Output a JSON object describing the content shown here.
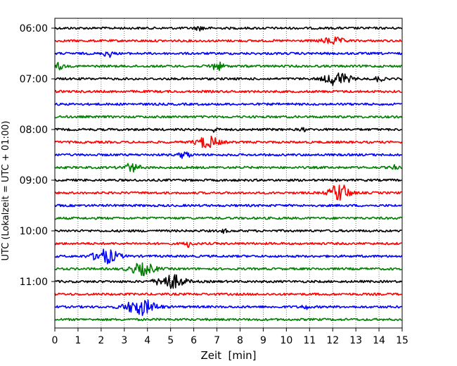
{
  "chart_data": {
    "type": "line",
    "title": "",
    "xlabel": "Zeit  [min]",
    "ylabel": "UTC (Lokalzeit = UTC + 01:00)",
    "xlim": [
      0,
      15
    ],
    "x_ticks": [
      "0",
      "1",
      "2",
      "3",
      "4",
      "5",
      "6",
      "7",
      "8",
      "9",
      "10",
      "11",
      "12",
      "13",
      "14",
      "15"
    ],
    "y_tick_labels": [
      "06:00",
      "07:00",
      "08:00",
      "09:00",
      "10:00",
      "11:00"
    ],
    "y_ticks_minutes": [
      0,
      60,
      120,
      180,
      240,
      300
    ],
    "trace_interval_minutes": 15,
    "vertical_gridlines": true,
    "gridline_style": "dotted",
    "traces": [
      {
        "start": "06:00",
        "color": "#000000",
        "events": [
          {
            "t": 6.3,
            "amp": 0.15,
            "w": 0.4
          }
        ]
      },
      {
        "start": "06:15",
        "color": "#ff0000",
        "events": [
          {
            "t": 12.0,
            "amp": 0.25,
            "w": 0.8
          }
        ]
      },
      {
        "start": "06:30",
        "color": "#0000ff",
        "events": [
          {
            "t": 2.3,
            "amp": 0.3,
            "w": 0.3
          }
        ]
      },
      {
        "start": "06:45",
        "color": "#008000",
        "events": [
          {
            "t": 0.2,
            "amp": 0.25,
            "w": 0.3
          },
          {
            "t": 7.0,
            "amp": 0.3,
            "w": 0.5
          }
        ]
      },
      {
        "start": "07:00",
        "color": "#000000",
        "events": [
          {
            "t": 12.2,
            "amp": 0.5,
            "w": 0.9
          },
          {
            "t": 14.0,
            "amp": 0.2,
            "w": 0.3
          }
        ]
      },
      {
        "start": "07:15",
        "color": "#ff0000",
        "events": []
      },
      {
        "start": "07:30",
        "color": "#0000ff",
        "events": []
      },
      {
        "start": "07:45",
        "color": "#008000",
        "events": []
      },
      {
        "start": "08:00",
        "color": "#000000",
        "events": [
          {
            "t": 6.9,
            "amp": 0.2,
            "w": 0.2
          },
          {
            "t": 10.7,
            "amp": 0.15,
            "w": 0.2
          }
        ]
      },
      {
        "start": "08:15",
        "color": "#ff0000",
        "events": [
          {
            "t": 6.6,
            "amp": 0.45,
            "w": 0.8
          }
        ]
      },
      {
        "start": "08:30",
        "color": "#0000ff",
        "events": [
          {
            "t": 5.6,
            "amp": 0.25,
            "w": 0.4
          }
        ]
      },
      {
        "start": "08:45",
        "color": "#008000",
        "events": [
          {
            "t": 3.3,
            "amp": 0.3,
            "w": 0.6
          },
          {
            "t": 14.7,
            "amp": 0.15,
            "w": 0.3
          }
        ]
      },
      {
        "start": "09:00",
        "color": "#000000",
        "events": []
      },
      {
        "start": "09:15",
        "color": "#ff0000",
        "events": [
          {
            "t": 12.3,
            "amp": 0.7,
            "w": 0.7
          }
        ]
      },
      {
        "start": "09:30",
        "color": "#0000ff",
        "events": []
      },
      {
        "start": "09:45",
        "color": "#008000",
        "events": []
      },
      {
        "start": "10:00",
        "color": "#000000",
        "events": [
          {
            "t": 7.3,
            "amp": 0.15,
            "w": 0.2
          }
        ]
      },
      {
        "start": "10:15",
        "color": "#ff0000",
        "events": [
          {
            "t": 5.8,
            "amp": 0.25,
            "w": 0.3
          }
        ]
      },
      {
        "start": "10:30",
        "color": "#0000ff",
        "events": [
          {
            "t": 2.2,
            "amp": 0.55,
            "w": 0.9
          }
        ]
      },
      {
        "start": "10:45",
        "color": "#008000",
        "events": [
          {
            "t": 3.8,
            "amp": 0.45,
            "w": 0.9
          }
        ]
      },
      {
        "start": "11:00",
        "color": "#000000",
        "events": [
          {
            "t": 5.0,
            "amp": 0.55,
            "w": 1.0
          }
        ]
      },
      {
        "start": "11:15",
        "color": "#ff0000",
        "events": []
      },
      {
        "start": "11:30",
        "color": "#0000ff",
        "events": [
          {
            "t": 3.7,
            "amp": 0.6,
            "w": 1.1
          },
          {
            "t": 10.8,
            "amp": 0.15,
            "w": 0.3
          }
        ]
      },
      {
        "start": "11:45",
        "color": "#008000",
        "events": []
      }
    ]
  }
}
